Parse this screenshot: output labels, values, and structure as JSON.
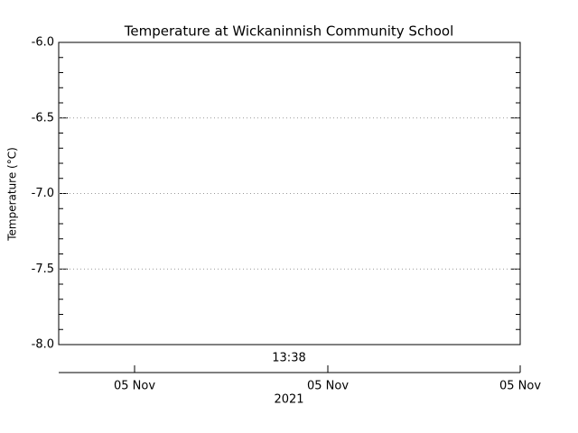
{
  "chart_data": {
    "type": "line",
    "title": "Temperature at Wickaninnish Community School",
    "y_label": "Temperature (°C)",
    "ylim": [
      -8,
      -6
    ],
    "yticks": [
      {
        "value": -8,
        "label": "-8.0"
      },
      {
        "value": -7.5,
        "label": "-7.5"
      },
      {
        "value": -7,
        "label": "-7.0"
      },
      {
        "value": -6.5,
        "label": "-6.5"
      },
      {
        "value": -6,
        "label": "-6.0"
      }
    ],
    "grid": true,
    "x_time_label": "13:38",
    "xtick_labels": [
      "05 Nov",
      "05 Nov",
      "05 Nov"
    ],
    "x_year_label": "2021"
  }
}
